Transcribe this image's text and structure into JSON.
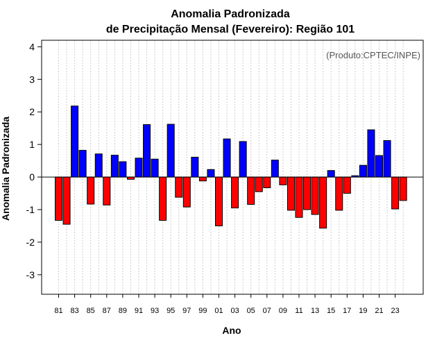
{
  "chart_data": {
    "type": "bar",
    "title_line1": "Anomalia Padronizada",
    "title_line2": "de Precipitação Mensal (Fevereiro): Região 101",
    "xlabel": "Ano",
    "ylabel": "Anomalia Padronizada",
    "credit": "(Produto:CPTEC/INPE)",
    "ylim": [
      -3.6,
      4.2
    ],
    "yticks": [
      "-3",
      "-2",
      "-1",
      "0",
      "1",
      "2",
      "3",
      "4"
    ],
    "categories": [
      "81",
      "82",
      "83",
      "84",
      "85",
      "86",
      "87",
      "88",
      "89",
      "90",
      "91",
      "92",
      "93",
      "94",
      "95",
      "96",
      "97",
      "98",
      "99",
      "00",
      "01",
      "02",
      "03",
      "04",
      "05",
      "06",
      "07",
      "08",
      "09",
      "10",
      "11",
      "12",
      "13",
      "14",
      "15",
      "16",
      "17",
      "18",
      "19",
      "20",
      "21",
      "22",
      "23",
      "24"
    ],
    "xtick_labels": [
      "81",
      "83",
      "85",
      "87",
      "89",
      "91",
      "93",
      "95",
      "97",
      "99",
      "01",
      "03",
      "05",
      "07",
      "09",
      "11",
      "13",
      "15",
      "17",
      "19",
      "21",
      "23"
    ],
    "values": [
      -1.33,
      -1.45,
      2.18,
      0.82,
      -0.83,
      0.71,
      -0.86,
      0.67,
      0.47,
      -0.07,
      0.58,
      1.61,
      0.55,
      -1.33,
      1.62,
      -0.62,
      -0.92,
      0.61,
      -0.12,
      0.23,
      -1.5,
      1.17,
      -0.95,
      1.09,
      -0.84,
      -0.45,
      -0.33,
      0.52,
      -0.24,
      -1.02,
      -1.24,
      -1.0,
      -1.15,
      -1.57,
      0.2,
      -1.02,
      -0.5,
      0.04,
      0.36,
      1.45,
      0.66,
      1.12,
      -0.98,
      -0.72
    ],
    "positive_color": "#0000ff",
    "negative_color": "#ff0000",
    "grid": true
  }
}
